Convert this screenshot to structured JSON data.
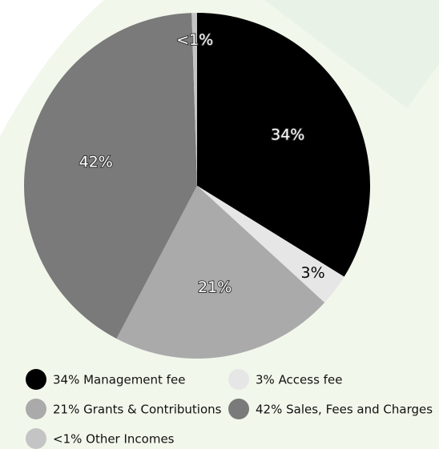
{
  "chart_data": {
    "type": "pie",
    "categories": [
      "34% Management fee",
      "3% Access fee",
      "21% Grants & Contributions",
      "42% Sales, Fees and Charges",
      "<1% Other Incomes"
    ],
    "values": [
      34,
      3,
      21,
      42,
      0.5
    ],
    "value_labels": [
      "34%",
      "3%",
      "21%",
      "42%",
      "<1%"
    ],
    "colors": [
      "#000000",
      "#e6e6e6",
      "#aaaaaa",
      "#7a7a7a",
      "#c4c4c4"
    ],
    "legend": "bottom"
  }
}
